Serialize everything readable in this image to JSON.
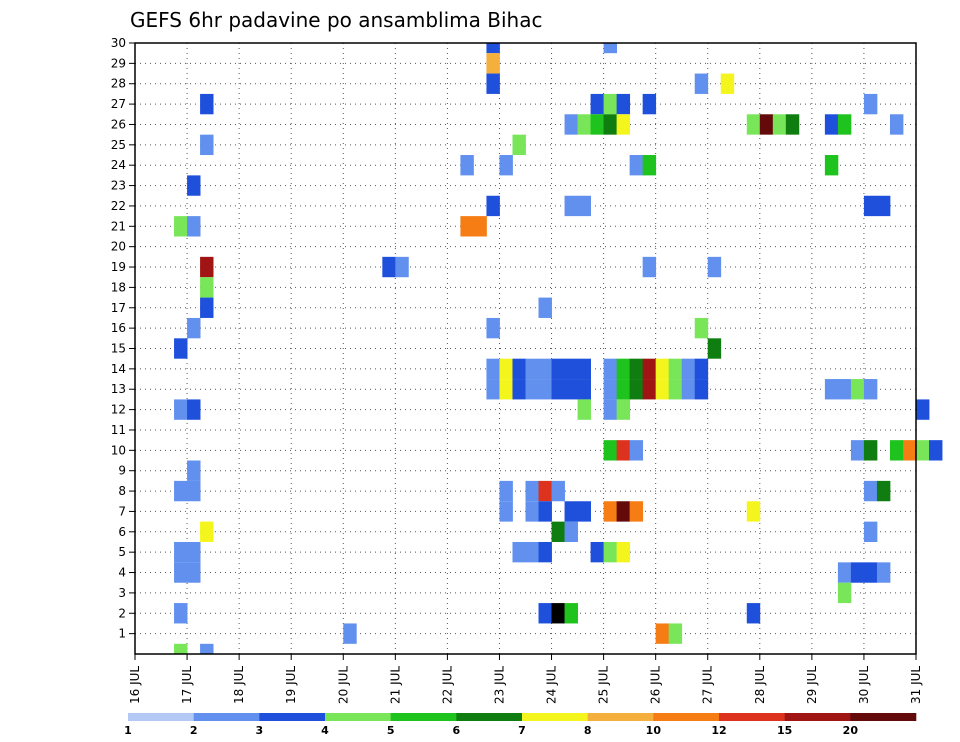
{
  "chart_data": {
    "type": "heatmap",
    "title": "GEFS 6hr padavine po ansamblima Bihac",
    "xlabel": "",
    "ylabel": "",
    "x_tick_labels": [
      "16 JUL",
      "17 JUL",
      "18 JUL",
      "19 JUL",
      "20 JUL",
      "21 JUL",
      "22 JUL",
      "23 JUL",
      "24 JUL",
      "25 JUL",
      "26 JUL",
      "27 JUL",
      "28 JUL",
      "29 JUL",
      "30 JUL",
      "31 JUL"
    ],
    "y_tick_labels": [
      "1",
      "2",
      "3",
      "4",
      "5",
      "6",
      "7",
      "8",
      "9",
      "10",
      "11",
      "12",
      "13",
      "14",
      "15",
      "16",
      "17",
      "18",
      "19",
      "20",
      "21",
      "22",
      "23",
      "24",
      "25",
      "26",
      "27",
      "28",
      "29",
      "30"
    ],
    "xlim": [
      0,
      15
    ],
    "ylim": [
      0,
      30
    ],
    "step_days": 0.25,
    "grid": true,
    "colorbar": {
      "levels": [
        "1",
        "2",
        "3",
        "4",
        "5",
        "6",
        "7",
        "8",
        "10",
        "12",
        "15",
        "20"
      ],
      "colors": [
        "#b4c8f5",
        "#6190ee",
        "#1e50dc",
        "#78e658",
        "#1ec31e",
        "#0f7d0f",
        "#f5f51e",
        "#f5af3c",
        "#f57d14",
        "#dc321e",
        "#a01414",
        "#640a0a"
      ]
    },
    "cells": [
      [
        6.75,
        30,
        2
      ],
      [
        9.0,
        30,
        1
      ],
      [
        6.75,
        29,
        7
      ],
      [
        6.75,
        28,
        2
      ],
      [
        10.75,
        28,
        1
      ],
      [
        11.25,
        28,
        6
      ],
      [
        1.25,
        27,
        2
      ],
      [
        8.75,
        27,
        2
      ],
      [
        9.0,
        27,
        3
      ],
      [
        9.25,
        27,
        2
      ],
      [
        9.75,
        27,
        2
      ],
      [
        14.0,
        27,
        1
      ],
      [
        8.25,
        26,
        1
      ],
      [
        8.5,
        26,
        3
      ],
      [
        8.75,
        26,
        4
      ],
      [
        9.0,
        26,
        5
      ],
      [
        9.25,
        26,
        6
      ],
      [
        11.75,
        26,
        3
      ],
      [
        12.0,
        26,
        11
      ],
      [
        12.25,
        26,
        3
      ],
      [
        12.5,
        26,
        5
      ],
      [
        13.25,
        26,
        2
      ],
      [
        13.5,
        26,
        4
      ],
      [
        14.5,
        26,
        1
      ],
      [
        1.25,
        25,
        1
      ],
      [
        7.25,
        25,
        3
      ],
      [
        6.25,
        24,
        1
      ],
      [
        7.0,
        24,
        1
      ],
      [
        9.5,
        24,
        1
      ],
      [
        9.75,
        24,
        4
      ],
      [
        13.25,
        24,
        4
      ],
      [
        1.0,
        23,
        2
      ],
      [
        6.75,
        22,
        2
      ],
      [
        8.25,
        22,
        1
      ],
      [
        8.5,
        22,
        1
      ],
      [
        14.0,
        22,
        2
      ],
      [
        14.25,
        22,
        2
      ],
      [
        0.75,
        21,
        3
      ],
      [
        1.0,
        21,
        1
      ],
      [
        6.25,
        21,
        8
      ],
      [
        6.5,
        21,
        8
      ],
      [
        1.25,
        19,
        10
      ],
      [
        4.75,
        19,
        2
      ],
      [
        5.0,
        19,
        1
      ],
      [
        9.75,
        19,
        1
      ],
      [
        11.0,
        19,
        1
      ],
      [
        1.25,
        18,
        3
      ],
      [
        1.25,
        17,
        2
      ],
      [
        7.75,
        17,
        1
      ],
      [
        1.0,
        16,
        1
      ],
      [
        6.75,
        16,
        1
      ],
      [
        10.75,
        16,
        3
      ],
      [
        0.75,
        15,
        2
      ],
      [
        11.0,
        15,
        5
      ],
      [
        6.75,
        14,
        1
      ],
      [
        7.0,
        14,
        6
      ],
      [
        7.25,
        14,
        2
      ],
      [
        7.5,
        14,
        1
      ],
      [
        7.75,
        14,
        1
      ],
      [
        8.0,
        14,
        2
      ],
      [
        8.25,
        14,
        2
      ],
      [
        8.5,
        14,
        2
      ],
      [
        9.0,
        14,
        1
      ],
      [
        9.25,
        14,
        4
      ],
      [
        9.5,
        14,
        5
      ],
      [
        9.75,
        14,
        10
      ],
      [
        10.0,
        14,
        6
      ],
      [
        10.25,
        14,
        3
      ],
      [
        10.5,
        14,
        1
      ],
      [
        10.75,
        14,
        2
      ],
      [
        6.75,
        13,
        1
      ],
      [
        7.0,
        13,
        6
      ],
      [
        7.25,
        13,
        2
      ],
      [
        7.5,
        13,
        1
      ],
      [
        7.75,
        13,
        1
      ],
      [
        8.0,
        13,
        2
      ],
      [
        8.25,
        13,
        2
      ],
      [
        8.5,
        13,
        2
      ],
      [
        9.0,
        13,
        1
      ],
      [
        9.25,
        13,
        4
      ],
      [
        9.5,
        13,
        5
      ],
      [
        9.75,
        13,
        10
      ],
      [
        10.0,
        13,
        6
      ],
      [
        10.25,
        13,
        3
      ],
      [
        10.5,
        13,
        1
      ],
      [
        10.75,
        13,
        2
      ],
      [
        13.25,
        13,
        1
      ],
      [
        13.5,
        13,
        1
      ],
      [
        13.75,
        13,
        3
      ],
      [
        14.0,
        13,
        1
      ],
      [
        0.75,
        12,
        1
      ],
      [
        1.0,
        12,
        2
      ],
      [
        8.5,
        12,
        3
      ],
      [
        9.0,
        12,
        1
      ],
      [
        9.25,
        12,
        3
      ],
      [
        15.0,
        12,
        2
      ],
      [
        9.0,
        10,
        4
      ],
      [
        9.25,
        10,
        9
      ],
      [
        9.5,
        10,
        1
      ],
      [
        13.75,
        10,
        1
      ],
      [
        14.0,
        10,
        5
      ],
      [
        14.5,
        10,
        4
      ],
      [
        14.75,
        10,
        8
      ],
      [
        15.0,
        10,
        3
      ],
      [
        15.25,
        10,
        2
      ],
      [
        1.0,
        9,
        1
      ],
      [
        0.75,
        8,
        1
      ],
      [
        1.0,
        8,
        1
      ],
      [
        7.0,
        8,
        1
      ],
      [
        7.5,
        8,
        1
      ],
      [
        7.75,
        8,
        9
      ],
      [
        8.0,
        8,
        1
      ],
      [
        14.0,
        8,
        1
      ],
      [
        14.25,
        8,
        5
      ],
      [
        7.0,
        7,
        1
      ],
      [
        7.5,
        7,
        1
      ],
      [
        7.75,
        7,
        2
      ],
      [
        8.25,
        7,
        2
      ],
      [
        8.5,
        7,
        2
      ],
      [
        9.0,
        7,
        8
      ],
      [
        9.25,
        7,
        11
      ],
      [
        9.5,
        7,
        8
      ],
      [
        11.75,
        7,
        6
      ],
      [
        1.25,
        6,
        6
      ],
      [
        8.0,
        6,
        5
      ],
      [
        8.25,
        6,
        1
      ],
      [
        14.0,
        6,
        1
      ],
      [
        0.75,
        5,
        1
      ],
      [
        1.0,
        5,
        1
      ],
      [
        7.25,
        5,
        1
      ],
      [
        7.5,
        5,
        1
      ],
      [
        7.75,
        5,
        2
      ],
      [
        8.75,
        5,
        2
      ],
      [
        9.0,
        5,
        3
      ],
      [
        9.25,
        5,
        6
      ],
      [
        0.75,
        4,
        1
      ],
      [
        1.0,
        4,
        1
      ],
      [
        13.5,
        4,
        1
      ],
      [
        13.75,
        4,
        2
      ],
      [
        14.0,
        4,
        2
      ],
      [
        14.25,
        4,
        1
      ],
      [
        13.5,
        3,
        3
      ],
      [
        0.75,
        2,
        1
      ],
      [
        7.75,
        2,
        2
      ],
      [
        8.0,
        2,
        12
      ],
      [
        8.25,
        2,
        4
      ],
      [
        11.75,
        2,
        2
      ],
      [
        4.0,
        1,
        1
      ],
      [
        10.0,
        1,
        8
      ],
      [
        10.25,
        1,
        3
      ],
      [
        0.75,
        0,
        3
      ],
      [
        1.25,
        0,
        1
      ]
    ]
  }
}
